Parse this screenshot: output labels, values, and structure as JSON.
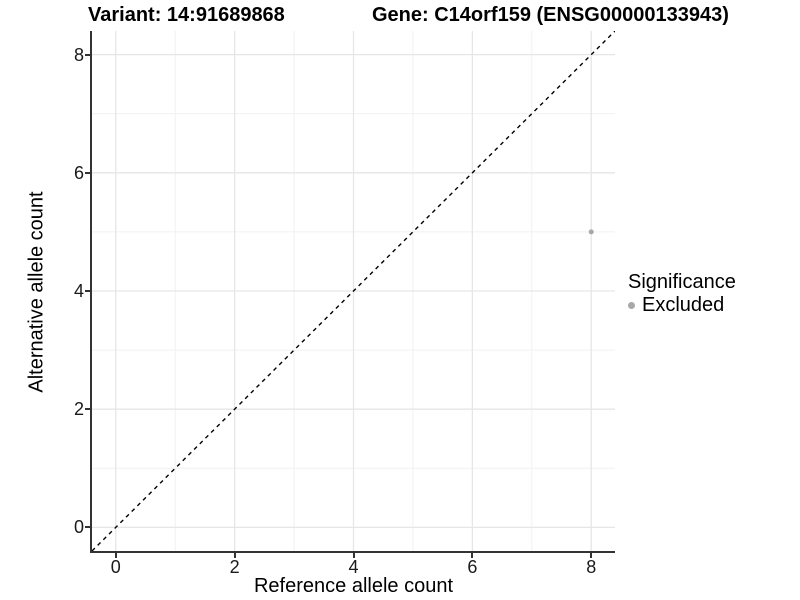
{
  "header": {
    "title_left": "Variant: 14:91689868",
    "title_right": "Gene: C14orf159 (ENSG00000133943)"
  },
  "chart_data": {
    "type": "scatter",
    "title_left": "Variant: 14:91689868",
    "title_right": "Gene: C14orf159 (ENSG00000133943)",
    "xlabel": "Reference allele count",
    "ylabel": "Alternative allele count",
    "xlim": [
      -0.4,
      8.4
    ],
    "ylim": [
      -0.4,
      8.4
    ],
    "x_major_ticks": [
      0,
      2,
      4,
      6,
      8
    ],
    "y_major_ticks": [
      0,
      2,
      4,
      6,
      8
    ],
    "x_minor_ticks": [
      1,
      3,
      5,
      7
    ],
    "y_minor_ticks": [
      1,
      3,
      5,
      7
    ],
    "grid": "major+minor",
    "reference_line": {
      "equation": "y = x",
      "style": "dashed",
      "color": "#000000",
      "from": [
        -0.4,
        -0.4
      ],
      "to": [
        8.4,
        8.4
      ]
    },
    "series": [
      {
        "name": "Excluded",
        "color": "#a8a8a8",
        "points": [
          {
            "x": 8,
            "y": 5
          }
        ]
      }
    ],
    "legend": {
      "position": "right",
      "title": "Significance",
      "items": [
        {
          "label": "Excluded",
          "color": "#a8a8a8"
        }
      ]
    }
  },
  "style": {
    "background": "#ffffff",
    "grid_major_color": "#e6e6e6",
    "grid_minor_color": "#f1f1f1",
    "axis_line_color": "#333333",
    "tick_text_color": "#1a1a1a",
    "title_text_color": "#000000",
    "point_color": "#a8a8a8"
  }
}
